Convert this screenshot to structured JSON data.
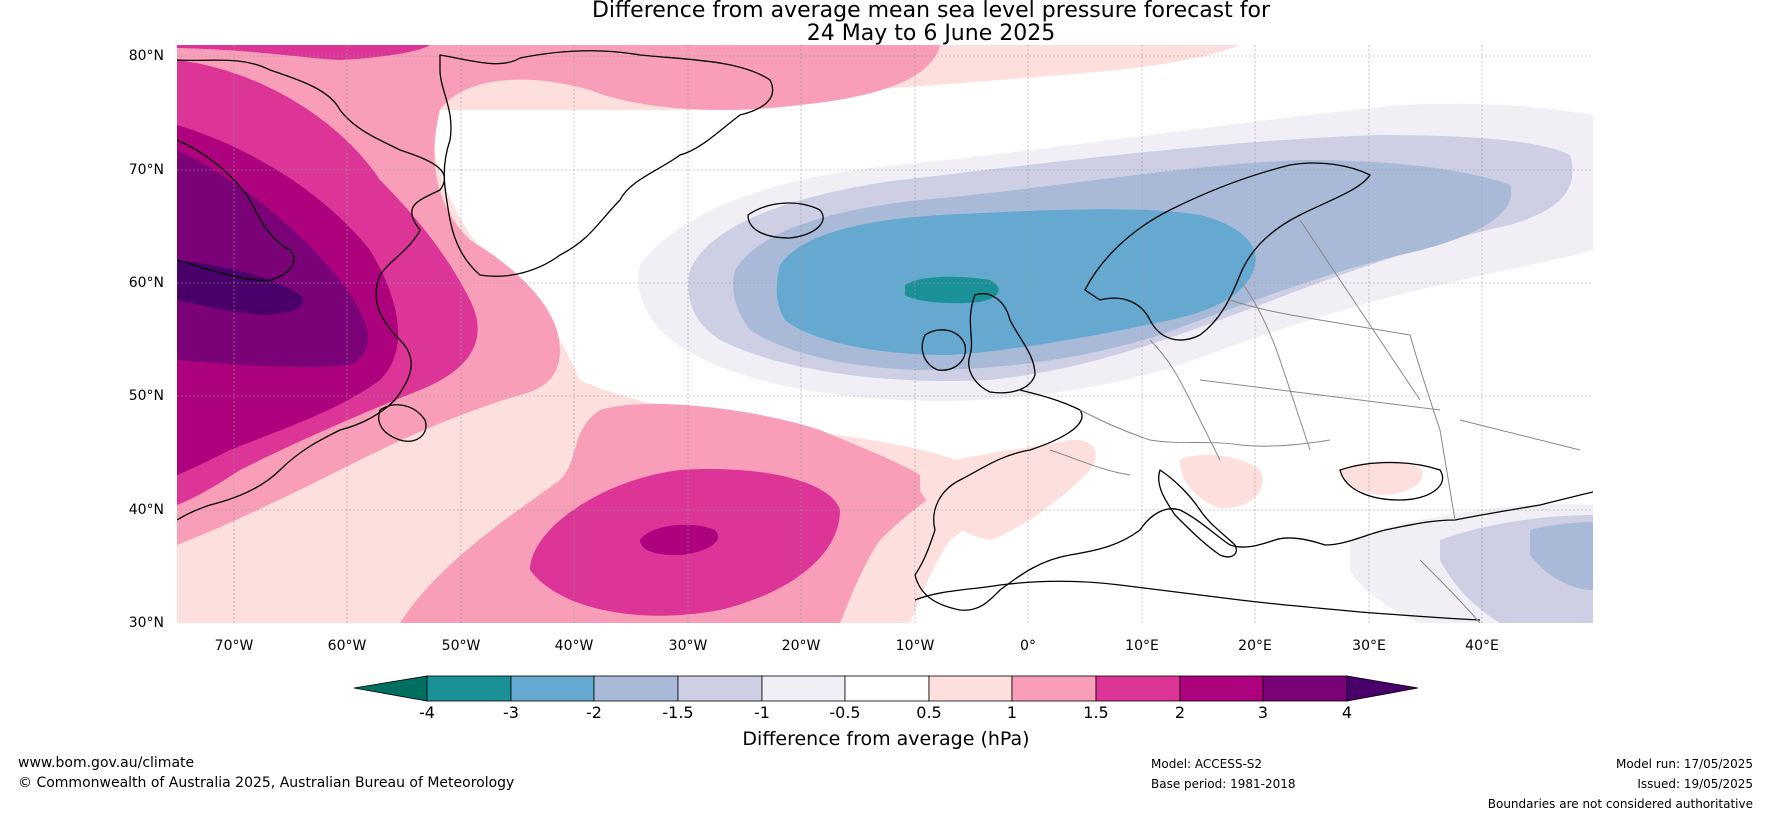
{
  "title": {
    "line1": "Difference from average mean sea level pressure forecast for",
    "line2": "24 May to 6 June 2025"
  },
  "map": {
    "lat_labels": [
      "80°N",
      "70°N",
      "60°N",
      "50°N",
      "40°N",
      "30°N"
    ],
    "lon_labels": [
      "70°W",
      "60°W",
      "50°W",
      "40°W",
      "30°W",
      "20°W",
      "10°W",
      "0°",
      "10°E",
      "20°E",
      "30°E",
      "40°E"
    ],
    "lat_range": [
      30,
      80
    ],
    "lon_range": [
      -75,
      50
    ],
    "coastline_color": "#000000",
    "border_color": "#808080",
    "gridlines": true
  },
  "colorbar": {
    "label": "Difference from average (hPa)",
    "tick_labels": [
      "-4",
      "-3",
      "-2",
      "-1.5",
      "-1",
      "-0.5",
      "0.5",
      "1",
      "1.5",
      "2",
      "3",
      "4"
    ],
    "colors": {
      "lt_-4": "#006f5f",
      "m4_m3": "#1a9097",
      "m3_m2": "#66a9d0",
      "m2_m15": "#a8bad8",
      "m15_m1": "#cecfe5",
      "m1_m05": "#f1eff5",
      "m05_05": "#ffffff",
      "p05_1": "#fde0dd",
      "p1_15": "#f99eb9",
      "p15_2": "#dd3497",
      "p2_3": "#ae017e",
      "p3_4": "#7a0177",
      "gt_4": "#49006a"
    }
  },
  "footer": {
    "website": "www.bom.gov.au/climate",
    "copyright": "© Commonwealth of Australia 2025, Australian Bureau of Meteorology",
    "model": "Model: ACCESS-S2",
    "base_period": "Base period: 1981-2018",
    "model_run": "Model run: 17/05/2025",
    "issued": "Issued: 19/05/2025",
    "disclaimer": "Boundaries are not considered authoritative"
  }
}
